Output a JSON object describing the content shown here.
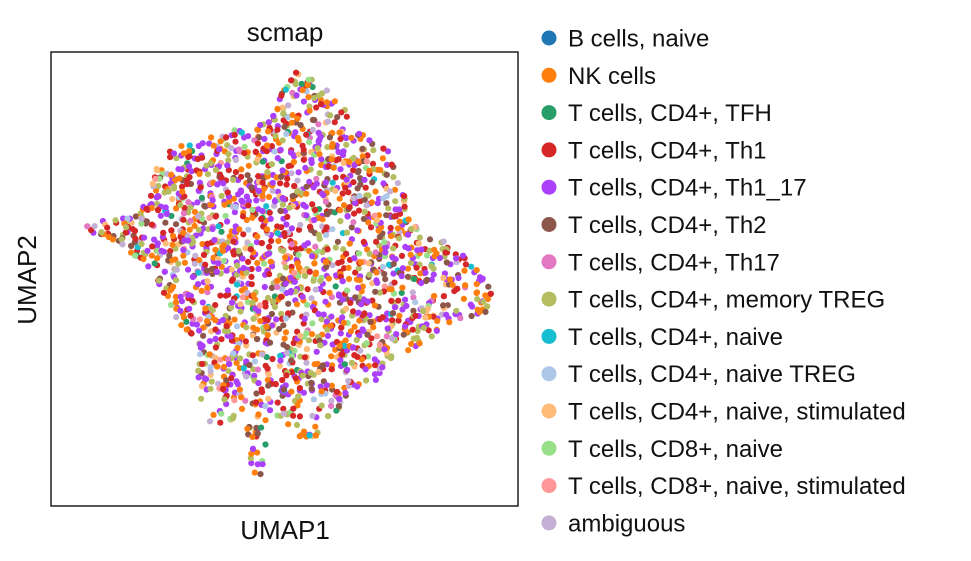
{
  "chart_data": {
    "type": "scatter",
    "title": "scmap",
    "xlabel": "UMAP1",
    "ylabel": "UMAP2",
    "ticks": "none",
    "grid": false,
    "legend_position": "right, outside plot",
    "categories": [
      {
        "name": "B cells, naive",
        "color": "#1f77b4",
        "share": 0.0
      },
      {
        "name": "NK cells",
        "color": "#ff7f0e",
        "share": 0.18
      },
      {
        "name": "T cells, CD4+, TFH",
        "color": "#279e68",
        "share": 0.015
      },
      {
        "name": "T cells, CD4+, Th1",
        "color": "#d62728",
        "share": 0.18
      },
      {
        "name": "T cells, CD4+, Th1_17",
        "color": "#aa40fc",
        "share": 0.24
      },
      {
        "name": "T cells, CD4+, Th2",
        "color": "#8c564b",
        "share": 0.09
      },
      {
        "name": "T cells, CD4+, Th17",
        "color": "#e377c2",
        "share": 0.03
      },
      {
        "name": "T cells, CD4+, memory TREG",
        "color": "#b5bd61",
        "share": 0.12
      },
      {
        "name": "T cells, CD4+, naive",
        "color": "#17becf",
        "share": 0.015
      },
      {
        "name": "T cells, CD4+, naive TREG",
        "color": "#aec7e8",
        "share": 0.015
      },
      {
        "name": "T cells, CD4+, naive, stimulated",
        "color": "#ffbb78",
        "share": 0.04
      },
      {
        "name": "T cells, CD8+, naive",
        "color": "#98df8a",
        "share": 0.03
      },
      {
        "name": "T cells, CD8+, naive, stimulated",
        "color": "#ff9896",
        "share": 0.015
      },
      {
        "name": "ambiguous",
        "color": "#c5b0d5",
        "share": 0.045
      }
    ]
  }
}
